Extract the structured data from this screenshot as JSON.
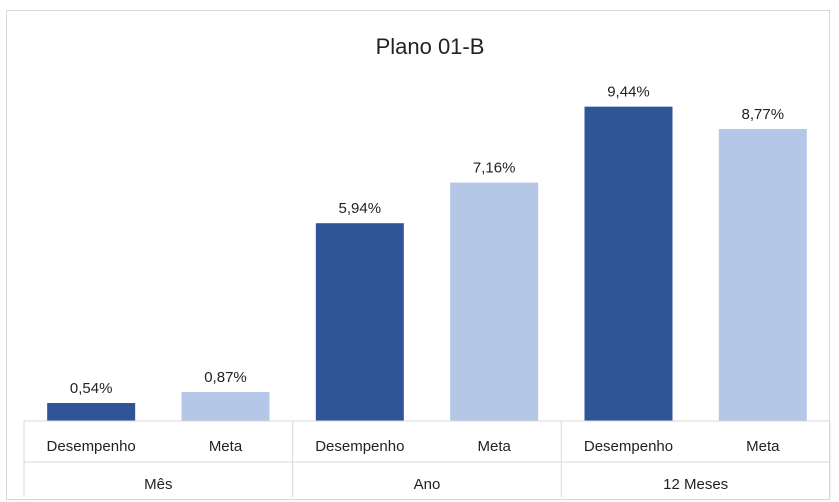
{
  "chart_data": {
    "type": "bar",
    "title": "Plano 01-B",
    "groups": [
      {
        "label": "Mês",
        "bars": [
          {
            "category": "Desempenho",
            "value": 0.54,
            "label": "0,54%",
            "color": "#2f5597"
          },
          {
            "category": "Meta",
            "value": 0.87,
            "label": "0,87%",
            "color": "#b4c7e7"
          }
        ]
      },
      {
        "label": "Ano",
        "bars": [
          {
            "category": "Desempenho",
            "value": 5.94,
            "label": "5,94%",
            "color": "#2f5597"
          },
          {
            "category": "Meta",
            "value": 7.16,
            "label": "7,16%",
            "color": "#b4c7e7"
          }
        ]
      },
      {
        "label": "12 Meses",
        "bars": [
          {
            "category": "Desempenho",
            "value": 9.44,
            "label": "9,44%",
            "color": "#2f5597"
          },
          {
            "category": "Meta",
            "value": 8.77,
            "label": "8,77%",
            "color": "#b4c7e7"
          }
        ]
      }
    ],
    "ylim": [
      0,
      10
    ],
    "grid": false,
    "legend": "none"
  }
}
